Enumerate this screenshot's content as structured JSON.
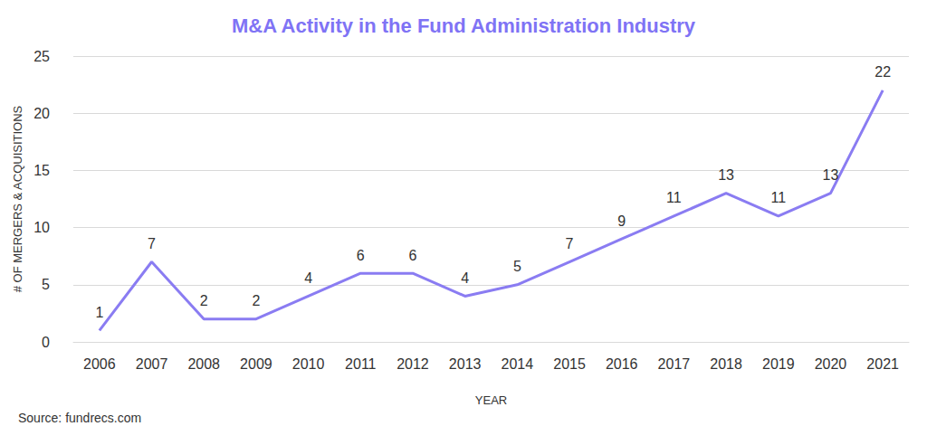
{
  "chart_data": {
    "type": "line",
    "title": "M&A Activity in the Fund Administration Industry",
    "x_label": "YEAR",
    "y_label": "# OF MERGERS & ACQUISITIONS",
    "source": "Source: fundrecs.com",
    "categories": [
      "2006",
      "2007",
      "2008",
      "2009",
      "2010",
      "2011",
      "2012",
      "2013",
      "2014",
      "2015",
      "2016",
      "2017",
      "2018",
      "2019",
      "2020",
      "2021"
    ],
    "values": [
      1,
      7,
      2,
      2,
      4,
      6,
      6,
      4,
      5,
      7,
      9,
      11,
      13,
      11,
      13,
      22
    ],
    "color": "#8a7cf2",
    "ylim": [
      0,
      25
    ],
    "yticks": [
      0,
      5,
      10,
      15,
      20,
      25
    ],
    "grid": true,
    "data_labels": true
  }
}
